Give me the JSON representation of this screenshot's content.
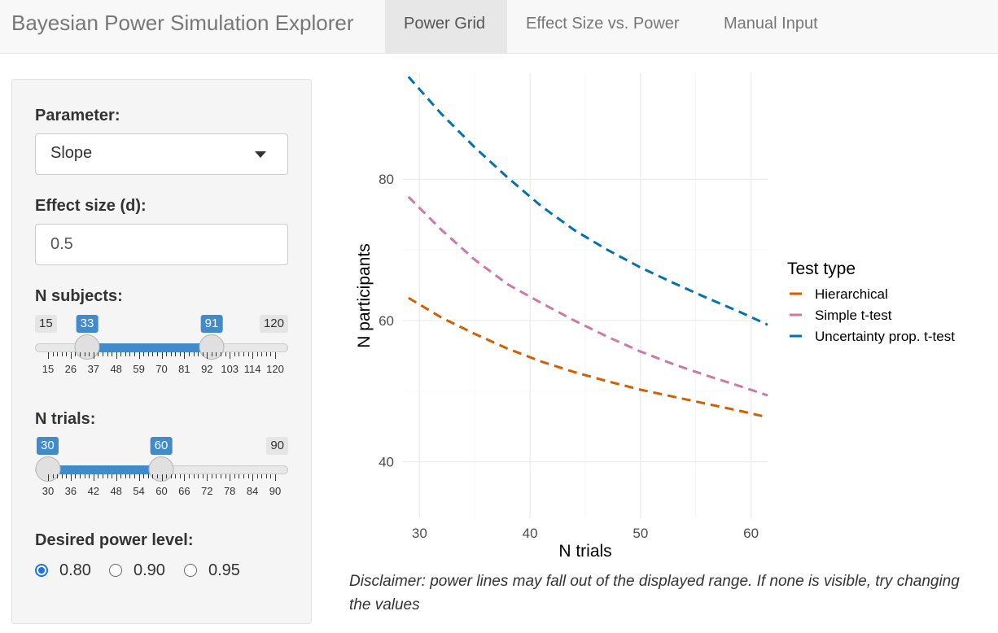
{
  "navbar": {
    "brand": "Bayesian Power Simulation Explorer",
    "tabs": [
      {
        "label": "Power Grid",
        "active": true
      },
      {
        "label": "Effect Size vs. Power",
        "active": false
      },
      {
        "label": "Manual Input",
        "active": false
      }
    ]
  },
  "sidebar": {
    "parameter": {
      "label": "Parameter:",
      "value": "Slope"
    },
    "effect_size": {
      "label": "Effect size (d):",
      "value": "0.5"
    },
    "n_subjects": {
      "label": "N subjects:",
      "min": "15",
      "max": "120",
      "low": "33",
      "high": "91",
      "ticks": [
        "15",
        "26",
        "37",
        "48",
        "59",
        "70",
        "81",
        "92",
        "103",
        "114",
        "120"
      ]
    },
    "n_trials": {
      "label": "N trials:",
      "min": "30",
      "max": "90",
      "low": "30",
      "high": "60",
      "ticks": [
        "30",
        "36",
        "42",
        "48",
        "54",
        "60",
        "66",
        "72",
        "78",
        "84",
        "90"
      ]
    },
    "power": {
      "label": "Desired power level:",
      "options": [
        "0.80",
        "0.90",
        "0.95"
      ],
      "selected": "0.80"
    }
  },
  "chart_data": {
    "type": "line",
    "title": "",
    "xlabel": "N trials",
    "ylabel": "N participants",
    "xlim": [
      28.5,
      61.5
    ],
    "ylim": [
      32,
      95
    ],
    "xticks": [
      "30",
      "40",
      "50",
      "60"
    ],
    "yticks": [
      "40",
      "60",
      "80"
    ],
    "grid": true,
    "legend_title": "Test type",
    "legend_position": "right",
    "series": [
      {
        "name": "Hierarchical",
        "color": "#d55e00",
        "x": [
          29,
          32,
          35,
          38,
          41,
          44,
          47,
          50,
          53,
          56,
          59,
          61.5
        ],
        "y": [
          63.2,
          60.4,
          58.1,
          56.0,
          54.2,
          52.7,
          51.4,
          50.2,
          49.2,
          48.2,
          47.2,
          46.3
        ]
      },
      {
        "name": "Simple t-test",
        "color": "#cc79a7",
        "x": [
          29,
          32,
          35,
          38,
          41,
          44,
          47,
          50,
          53,
          56,
          59,
          61.5
        ],
        "y": [
          77.5,
          72.8,
          68.6,
          65.1,
          62.5,
          60.0,
          57.7,
          55.6,
          53.8,
          52.2,
          50.7,
          49.4
        ]
      },
      {
        "name": "Uncertainty prop. t-test",
        "color": "#0072b2",
        "x": [
          29,
          32,
          35,
          38,
          41,
          44,
          47,
          50,
          53,
          56,
          59,
          61.5
        ],
        "y": [
          94.5,
          89.2,
          84.5,
          80.2,
          76.2,
          72.8,
          70.0,
          67.5,
          65.3,
          63.2,
          61.2,
          59.4
        ]
      }
    ]
  },
  "disclaimer": "Disclaimer: power lines may fall out of the displayed range. If none is visible, try changing the values"
}
